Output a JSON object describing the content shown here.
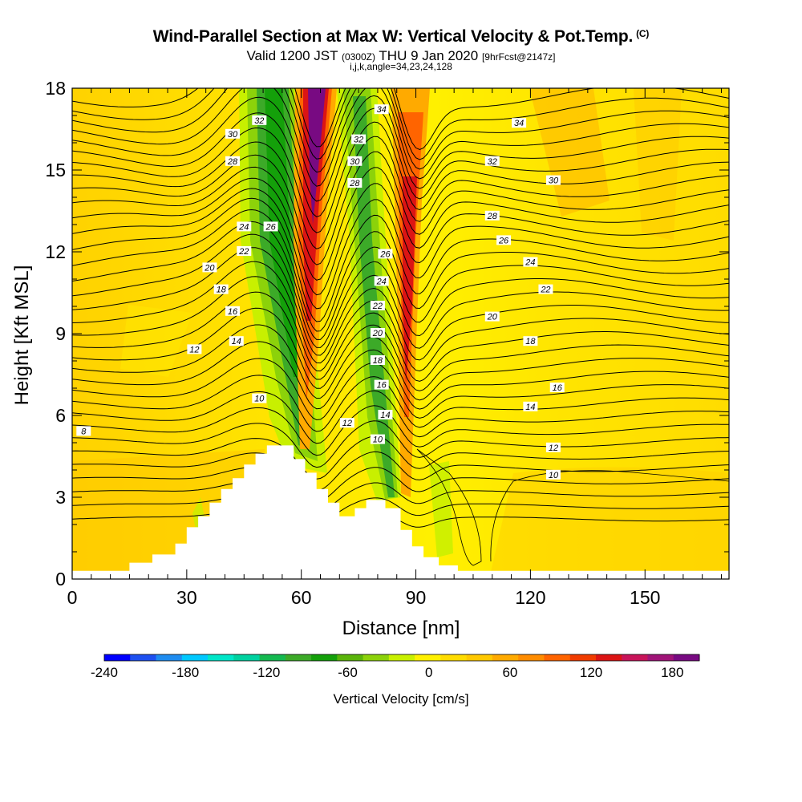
{
  "header": {
    "title": "Wind-Parallel Section at Max W: Vertical Velocity & Pot.Temp.",
    "copyright": "(C)",
    "valid_prefix": "Valid 1200 JST",
    "utc": "(0300Z)",
    "valid_date": "THU 9 Jan 2020",
    "forecast": "[9hrFcst@2147z]",
    "params": "i,j,k,angle=34,23,24,128"
  },
  "chart_data": {
    "type": "heatmap",
    "title": "Wind-Parallel Section at Max W: Vertical Velocity & Pot.Temp.",
    "xlabel": "Distance [nm]",
    "ylabel": "Height [Kft MSL]",
    "xlim": [
      0,
      172
    ],
    "ylim": [
      0,
      18
    ],
    "x_ticks": [
      0,
      30,
      60,
      90,
      120,
      150
    ],
    "y_ticks": [
      0,
      3,
      6,
      9,
      12,
      15,
      18
    ],
    "colorbar": {
      "label": "Vertical Velocity [cm/s]",
      "tick_values": [
        -240,
        -180,
        -120,
        -60,
        0,
        60,
        120,
        180
      ],
      "tick_labels": [
        "-240",
        "-180",
        "-120",
        "-60",
        "0",
        "60",
        "120",
        "180"
      ],
      "levels": [
        -240,
        -220,
        -200,
        -180,
        -160,
        -140,
        -120,
        -100,
        -80,
        -60,
        -40,
        -20,
        0,
        20,
        40,
        60,
        80,
        100,
        120,
        140,
        160,
        180,
        200
      ],
      "colors": [
        "#0000ff",
        "#1e50f0",
        "#1e8cf0",
        "#00c8ff",
        "#00e6c8",
        "#00d2a0",
        "#14b950",
        "#3caa28",
        "#14a00a",
        "#5ab40a",
        "#8cd20a",
        "#c8f000",
        "#fff000",
        "#ffdc00",
        "#ffc800",
        "#ffaa00",
        "#ff8c00",
        "#ff6400",
        "#f03c00",
        "#dc1414",
        "#c8145a",
        "#a01478",
        "#780a82"
      ]
    },
    "terrain_kft": [
      [
        0,
        0.3
      ],
      [
        15,
        0.3
      ],
      [
        15,
        0.6
      ],
      [
        21,
        0.6
      ],
      [
        21,
        0.9
      ],
      [
        27,
        0.9
      ],
      [
        27,
        1.3
      ],
      [
        30,
        1.3
      ],
      [
        30,
        1.9
      ],
      [
        33,
        1.9
      ],
      [
        33,
        2.3
      ],
      [
        36,
        2.3
      ],
      [
        36,
        2.8
      ],
      [
        39,
        2.8
      ],
      [
        39,
        3.3
      ],
      [
        42,
        3.3
      ],
      [
        42,
        3.7
      ],
      [
        45,
        3.7
      ],
      [
        45,
        4.2
      ],
      [
        48,
        4.2
      ],
      [
        48,
        4.6
      ],
      [
        51,
        4.6
      ],
      [
        51,
        4.9
      ],
      [
        58,
        4.9
      ],
      [
        58,
        4.4
      ],
      [
        61,
        4.4
      ],
      [
        61,
        3.9
      ],
      [
        64,
        3.9
      ],
      [
        64,
        3.3
      ],
      [
        67,
        3.3
      ],
      [
        67,
        2.8
      ],
      [
        70,
        2.8
      ],
      [
        70,
        2.3
      ],
      [
        74,
        2.3
      ],
      [
        74,
        2.6
      ],
      [
        77,
        2.6
      ],
      [
        77,
        2.9
      ],
      [
        82,
        2.9
      ],
      [
        82,
        2.6
      ],
      [
        86,
        2.6
      ],
      [
        86,
        1.8
      ],
      [
        89,
        1.8
      ],
      [
        89,
        1.2
      ],
      [
        92,
        1.2
      ],
      [
        92,
        0.8
      ],
      [
        96,
        0.8
      ],
      [
        96,
        0.5
      ],
      [
        101,
        0.5
      ],
      [
        101,
        0.3
      ],
      [
        172,
        0.3
      ]
    ],
    "isentrope_labels": [
      {
        "x": 3,
        "y": 5.4,
        "text": "8"
      },
      {
        "x": 49,
        "y": 6.6,
        "text": "10"
      },
      {
        "x": 72,
        "y": 5.7,
        "text": "12"
      },
      {
        "x": 43,
        "y": 8.7,
        "text": "14"
      },
      {
        "x": 42,
        "y": 9.8,
        "text": "16"
      },
      {
        "x": 39,
        "y": 10.6,
        "text": "18"
      },
      {
        "x": 36,
        "y": 11.4,
        "text": "20"
      },
      {
        "x": 45,
        "y": 12.0,
        "text": "22"
      },
      {
        "x": 45,
        "y": 12.9,
        "text": "24"
      },
      {
        "x": 52,
        "y": 12.9,
        "text": "26"
      },
      {
        "x": 42,
        "y": 15.3,
        "text": "28"
      },
      {
        "x": 42,
        "y": 16.3,
        "text": "30"
      },
      {
        "x": 49,
        "y": 16.8,
        "text": "32"
      },
      {
        "x": 32,
        "y": 8.4,
        "text": "12"
      },
      {
        "x": 80,
        "y": 5.1,
        "text": "10"
      },
      {
        "x": 82,
        "y": 6.0,
        "text": "14"
      },
      {
        "x": 81,
        "y": 7.1,
        "text": "16"
      },
      {
        "x": 80,
        "y": 8.0,
        "text": "18"
      },
      {
        "x": 80,
        "y": 9.0,
        "text": "20"
      },
      {
        "x": 80,
        "y": 10.0,
        "text": "22"
      },
      {
        "x": 81,
        "y": 10.9,
        "text": "24"
      },
      {
        "x": 82,
        "y": 11.9,
        "text": "26"
      },
      {
        "x": 74,
        "y": 14.5,
        "text": "28"
      },
      {
        "x": 74,
        "y": 15.3,
        "text": "30"
      },
      {
        "x": 75,
        "y": 16.1,
        "text": "32"
      },
      {
        "x": 81,
        "y": 17.2,
        "text": "34"
      },
      {
        "x": 110,
        "y": 15.3,
        "text": "32"
      },
      {
        "x": 117,
        "y": 16.7,
        "text": "34"
      },
      {
        "x": 110,
        "y": 13.3,
        "text": "28"
      },
      {
        "x": 113,
        "y": 12.4,
        "text": "26"
      },
      {
        "x": 120,
        "y": 11.6,
        "text": "24"
      },
      {
        "x": 124,
        "y": 10.6,
        "text": "22"
      },
      {
        "x": 110,
        "y": 9.6,
        "text": "20"
      },
      {
        "x": 120,
        "y": 8.7,
        "text": "18"
      },
      {
        "x": 127,
        "y": 7.0,
        "text": "16"
      },
      {
        "x": 120,
        "y": 6.3,
        "text": "14"
      },
      {
        "x": 126,
        "y": 4.8,
        "text": "12"
      },
      {
        "x": 126,
        "y": 3.8,
        "text": "10"
      },
      {
        "x": 126,
        "y": 14.6,
        "text": "30"
      }
    ]
  }
}
